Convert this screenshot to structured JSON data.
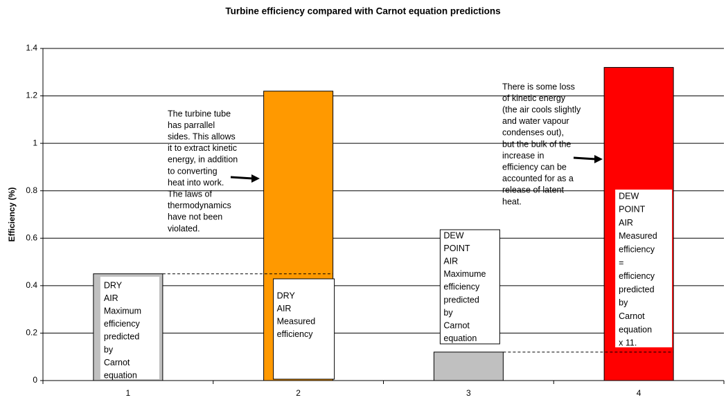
{
  "chart_data": {
    "type": "bar",
    "title": "Turbine efficiency compared with Carnot equation predictions",
    "y_label": "Efficiency (%)",
    "categories": [
      "1",
      "2",
      "3",
      "4"
    ],
    "values": [
      0.45,
      1.22,
      0.12,
      1.32
    ],
    "colors": [
      "#c0c0c0",
      "#ff9900",
      "#c0c0c0",
      "#ff0000"
    ],
    "ylim": [
      0,
      1.4
    ],
    "yticks": [
      0,
      0.2,
      0.4,
      0.6,
      0.8,
      1,
      1.2,
      1.4
    ],
    "grid": true,
    "annotations": [
      [
        "DRY",
        "AIR",
        "Maximum",
        "efficiency",
        "predicted",
        "by",
        "Carnot",
        "equation"
      ],
      [
        "DRY",
        "AIR",
        "Measured",
        "efficiency"
      ],
      [
        "DEW",
        "POINT",
        "AIR",
        "Maximume",
        "efficiency",
        "predicted",
        "by",
        "Carnot",
        "equation"
      ],
      [
        "DEW",
        "POINT",
        "AIR",
        "Measured",
        "efficiency",
        "=",
        "efficiency",
        "predicted",
        "by",
        "Carnot",
        "equation",
        "x 11."
      ],
      [
        "The turbine tube",
        "has parrallel",
        "sides. This allows",
        "it to extract kinetic",
        "energy, in addition",
        "to converting",
        "heat into work.",
        "The laws of",
        "thermodynamics",
        "have not been",
        "violated."
      ],
      [
        "There is some loss",
        "of kinetic energy",
        "(the air cools slightly",
        "and water vapour",
        "condenses out),",
        "but the bulk of the",
        "increase in",
        "efficiency can be",
        "accounted for as a",
        "release of latent",
        "heat."
      ]
    ]
  }
}
